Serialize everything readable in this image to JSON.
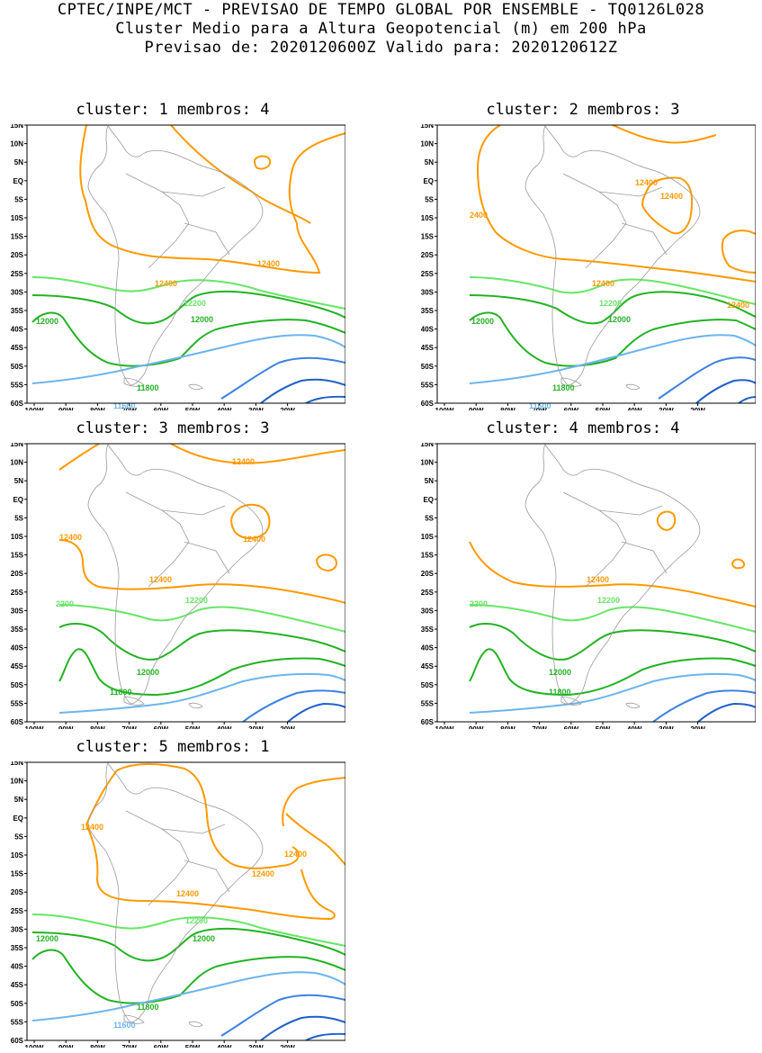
{
  "header": {
    "line1": "CPTEC/INPE/MCT - PREVISAO DE TEMPO GLOBAL POR ENSEMBLE - TQ0126L028",
    "line2": "Cluster Medio para a Altura Geopotencial (m) em 200 hPa",
    "line3": "Previsao de: 2020120600Z   Valido para: 2020120612Z"
  },
  "axis": {
    "lat_labels": [
      "15N",
      "10N",
      "5N",
      "EQ",
      "5S",
      "10S",
      "15S",
      "20S",
      "25S",
      "30S",
      "35S",
      "40S",
      "45S",
      "50S",
      "55S",
      "60S"
    ],
    "lon_labels": [
      "100W",
      "90W",
      "80W",
      "70W",
      "60W",
      "50W",
      "40W",
      "30W",
      "20W"
    ]
  },
  "colors": {
    "c12400": "#ff9900",
    "c12200": "#66e666",
    "c12000": "#22b222",
    "c11800": "#22b222",
    "c11600": "#6cb4ee",
    "c11400": "#3c82e0",
    "c11200": "#1f5fc8",
    "coast": "#9a9a9a"
  },
  "panels": [
    {
      "title": "cluster: 1   membros: 4",
      "labels": {
        "l12400a": "12400",
        "l12400b": "12400",
        "l12200": "12200",
        "l12000a": "12000",
        "l12000b": "12000",
        "l11800": "11800",
        "l11600": "11600"
      }
    },
    {
      "title": "cluster: 2   membros: 3",
      "labels": {
        "l12400a": "12400",
        "l12400b": "12400",
        "l12400c": "12400",
        "l12400d": "12400",
        "l12400e": "2400",
        "l12200": "12200",
        "l12000a": "12000",
        "l12000b": "12000",
        "l11800": "11800",
        "l11600": "11600"
      }
    },
    {
      "title": "cluster: 3   membros: 3",
      "labels": {
        "l12400a": "12400",
        "l12400b": "12400",
        "l12400c": "12400",
        "l12400d": "12400",
        "l12200a": "12200",
        "l12200b": "2200",
        "l12000": "12000",
        "l11800": "11800"
      }
    },
    {
      "title": "cluster: 4   membros: 4",
      "labels": {
        "l12400a": "12400",
        "l12200a": "12200",
        "l12200b": "2200",
        "l12000": "12000",
        "l11800": "11800"
      }
    },
    {
      "title": "cluster: 5   membros: 1",
      "labels": {
        "l12400a": "12400",
        "l12400b": "12400",
        "l12400c": "12400",
        "l12400d": "12400",
        "l12200": "12200",
        "l12000a": "12000",
        "l12000b": "12000",
        "l11800": "11800",
        "l11600": "11600"
      }
    }
  ]
}
